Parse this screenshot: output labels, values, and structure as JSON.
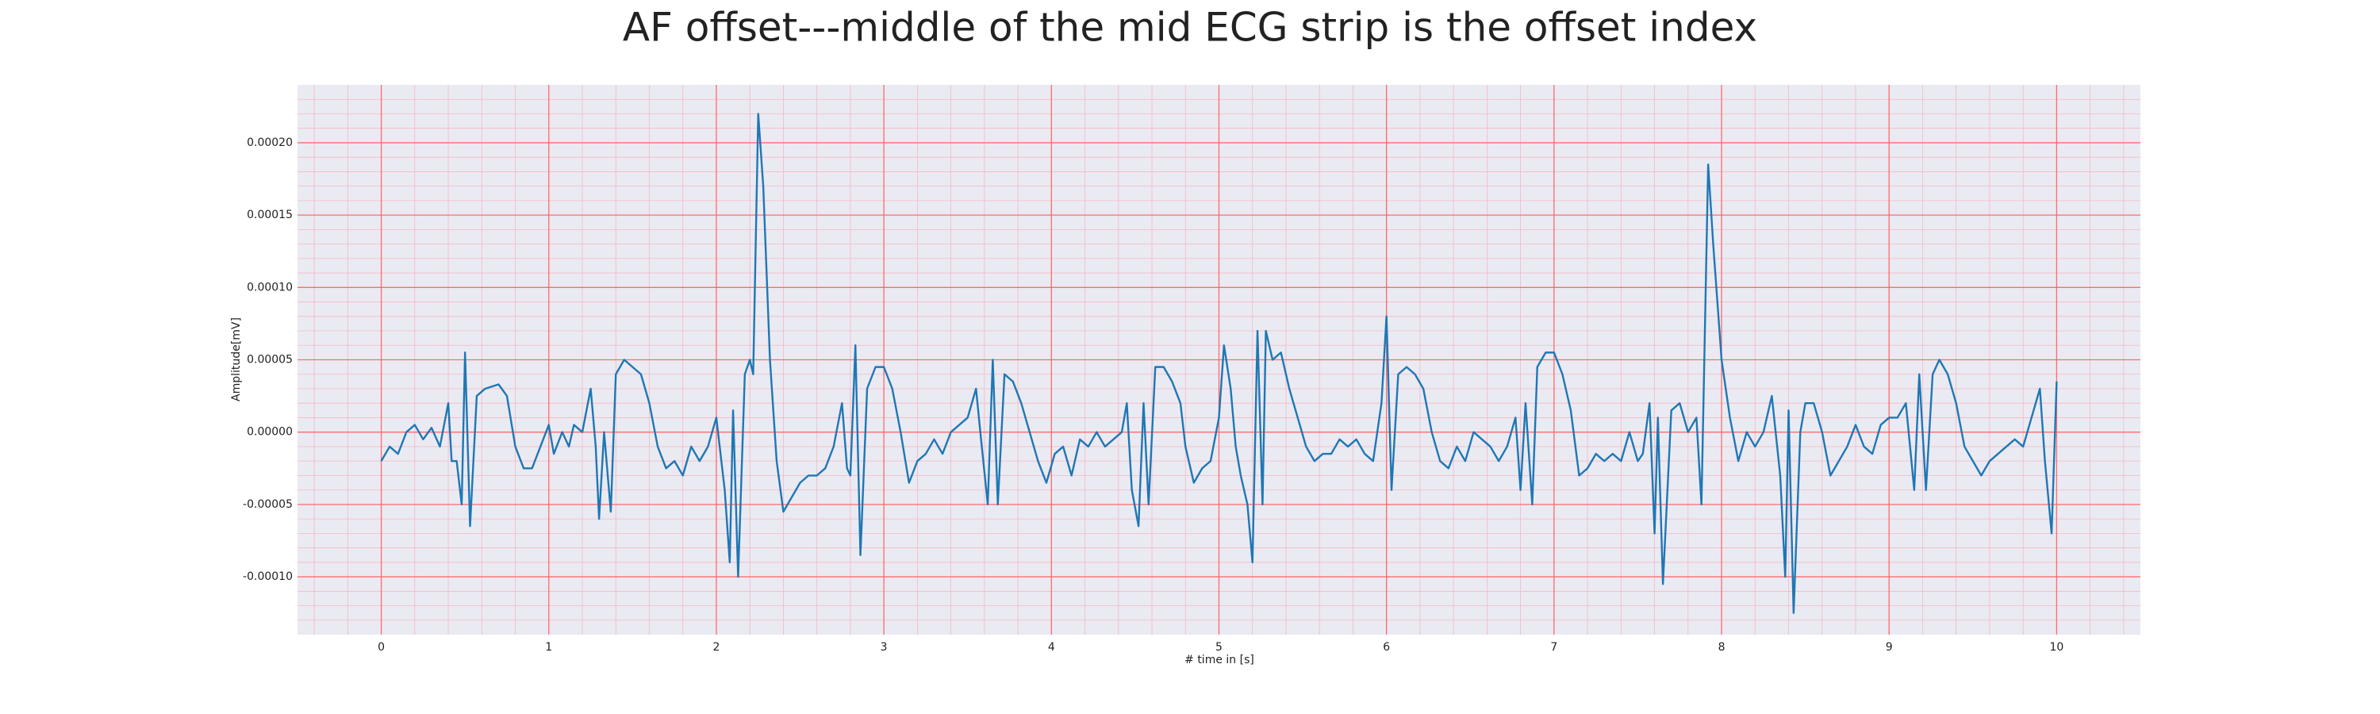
{
  "chart_data": {
    "type": "line",
    "title": "AF offset---middle of the mid ECG strip is the offset index",
    "x_label": "# time in [s]",
    "y_label": "Amplitude[mV]",
    "xlim": [
      -0.5,
      10.5
    ],
    "xticks": [
      0,
      1,
      2,
      3,
      4,
      5,
      6,
      7,
      8,
      9,
      10
    ],
    "ylim": [
      -0.00014,
      0.00024
    ],
    "yticks": [
      {
        "value": -0.0001,
        "label": "-0.00010"
      },
      {
        "value": -5e-05,
        "label": "-0.00005"
      },
      {
        "value": 0,
        "label": "0.00000"
      },
      {
        "value": 5e-05,
        "label": "0.00005"
      },
      {
        "value": 0.0001,
        "label": "0.00010"
      },
      {
        "value": 0.00015,
        "label": "0.00015"
      },
      {
        "value": 0.0002,
        "label": "0.00020"
      }
    ],
    "grid": true,
    "grid_color": "#ff6b6b",
    "minor_grid_color": "#f5b8c4",
    "background": "#eaeaf2",
    "series": [
      {
        "color": "#1f77b4",
        "x": [
          0,
          0.05,
          0.1,
          0.15,
          0.2,
          0.25,
          0.3,
          0.35,
          0.4,
          0.42,
          0.45,
          0.48,
          0.5,
          0.53,
          0.57,
          0.62,
          0.7,
          0.75,
          0.8,
          0.85,
          0.9,
          0.95,
          1.0,
          1.03,
          1.08,
          1.12,
          1.15,
          1.2,
          1.25,
          1.28,
          1.3,
          1.33,
          1.37,
          1.4,
          1.45,
          1.5,
          1.55,
          1.6,
          1.65,
          1.7,
          1.75,
          1.8,
          1.85,
          1.9,
          1.95,
          2.0,
          2.05,
          2.08,
          2.1,
          2.13,
          2.17,
          2.2,
          2.22,
          2.25,
          2.28,
          2.32,
          2.36,
          2.4,
          2.45,
          2.5,
          2.55,
          2.6,
          2.65,
          2.7,
          2.75,
          2.78,
          2.8,
          2.83,
          2.86,
          2.9,
          2.95,
          3.0,
          3.05,
          3.1,
          3.15,
          3.2,
          3.25,
          3.3,
          3.35,
          3.4,
          3.45,
          3.5,
          3.55,
          3.58,
          3.62,
          3.65,
          3.68,
          3.72,
          3.77,
          3.82,
          3.87,
          3.92,
          3.97,
          4.02,
          4.07,
          4.12,
          4.17,
          4.22,
          4.27,
          4.32,
          4.37,
          4.42,
          4.45,
          4.48,
          4.52,
          4.55,
          4.58,
          4.62,
          4.67,
          4.72,
          4.77,
          4.8,
          4.85,
          4.9,
          4.95,
          5.0,
          5.03,
          5.07,
          5.1,
          5.13,
          5.17,
          5.2,
          5.23,
          5.26,
          5.28,
          5.32,
          5.37,
          5.42,
          5.47,
          5.52,
          5.57,
          5.62,
          5.67,
          5.72,
          5.77,
          5.82,
          5.87,
          5.92,
          5.97,
          6.0,
          6.03,
          6.07,
          6.12,
          6.17,
          6.22,
          6.27,
          6.32,
          6.37,
          6.42,
          6.47,
          6.52,
          6.57,
          6.62,
          6.67,
          6.72,
          6.77,
          6.8,
          6.83,
          6.87,
          6.9,
          6.95,
          7.0,
          7.05,
          7.1,
          7.15,
          7.2,
          7.25,
          7.3,
          7.35,
          7.4,
          7.45,
          7.5,
          7.53,
          7.57,
          7.6,
          7.62,
          7.65,
          7.7,
          7.75,
          7.8,
          7.85,
          7.88,
          7.92,
          7.95,
          8.0,
          8.05,
          8.1,
          8.15,
          8.2,
          8.25,
          8.3,
          8.35,
          8.38,
          8.4,
          8.43,
          8.47,
          8.5,
          8.55,
          8.6,
          8.65,
          8.7,
          8.75,
          8.8,
          8.85,
          8.9,
          8.95,
          9.0,
          9.05,
          9.1,
          9.15,
          9.18,
          9.22,
          9.26,
          9.3,
          9.35,
          9.4,
          9.45,
          9.5,
          9.55,
          9.6,
          9.65,
          9.7,
          9.75,
          9.8,
          9.85,
          9.9,
          9.93,
          9.97,
          10.0
        ],
        "values": [
          -2e-05,
          -1e-05,
          -1.5e-05,
          0,
          5e-06,
          -5e-06,
          3e-06,
          -1e-05,
          2e-05,
          -2e-05,
          -2e-05,
          -5e-05,
          5.5e-05,
          -6.5e-05,
          2.5e-05,
          3e-05,
          3.3e-05,
          2.5e-05,
          -1e-05,
          -2.5e-05,
          -2.5e-05,
          -1e-05,
          5e-06,
          -1.5e-05,
          0,
          -1e-05,
          5e-06,
          0,
          3e-05,
          -1e-05,
          -6e-05,
          0,
          -5.5e-05,
          4e-05,
          5e-05,
          4.5e-05,
          4e-05,
          2e-05,
          -1e-05,
          -2.5e-05,
          -2e-05,
          -3e-05,
          -1e-05,
          -2e-05,
          -1e-05,
          1e-05,
          -4e-05,
          -9e-05,
          1.5e-05,
          -0.0001,
          4e-05,
          5e-05,
          4e-05,
          0.00022,
          0.00017,
          5e-05,
          -2e-05,
          -5.5e-05,
          -4.5e-05,
          -3.5e-05,
          -3e-05,
          -3e-05,
          -2.5e-05,
          -1e-05,
          2e-05,
          -2.5e-05,
          -3e-05,
          6e-05,
          -8.5e-05,
          3e-05,
          4.5e-05,
          4.5e-05,
          3e-05,
          0,
          -3.5e-05,
          -2e-05,
          -1.5e-05,
          -5e-06,
          -1.5e-05,
          0,
          5e-06,
          1e-05,
          3e-05,
          -5e-06,
          -5e-05,
          5e-05,
          -5e-05,
          4e-05,
          3.5e-05,
          2e-05,
          0,
          -2e-05,
          -3.5e-05,
          -1.5e-05,
          -1e-05,
          -3e-05,
          -5e-06,
          -1e-05,
          0,
          -1e-05,
          -5e-06,
          0,
          2e-05,
          -4e-05,
          -6.5e-05,
          2e-05,
          -5e-05,
          4.5e-05,
          4.5e-05,
          3.5e-05,
          2e-05,
          -1e-05,
          -3.5e-05,
          -2.5e-05,
          -2e-05,
          1e-05,
          6e-05,
          3e-05,
          -1e-05,
          -3e-05,
          -5e-05,
          -9e-05,
          7e-05,
          -5e-05,
          7e-05,
          5e-05,
          5.5e-05,
          3e-05,
          1e-05,
          -1e-05,
          -2e-05,
          -1.5e-05,
          -1.5e-05,
          -5e-06,
          -1e-05,
          -5e-06,
          -1.5e-05,
          -2e-05,
          2e-05,
          8e-05,
          -4e-05,
          4e-05,
          4.5e-05,
          4e-05,
          3e-05,
          0,
          -2e-05,
          -2.5e-05,
          -1e-05,
          -2e-05,
          0,
          -5e-06,
          -1e-05,
          -2e-05,
          -1e-05,
          1e-05,
          -4e-05,
          2e-05,
          -5e-05,
          4.5e-05,
          5.5e-05,
          5.5e-05,
          4e-05,
          1.5e-05,
          -3e-05,
          -2.5e-05,
          -1.5e-05,
          -2e-05,
          -1.5e-05,
          -2e-05,
          0,
          -2e-05,
          -1.5e-05,
          2e-05,
          -7e-05,
          1e-05,
          -0.000105,
          1.5e-05,
          2e-05,
          0,
          1e-05,
          -5e-05,
          0.000185,
          0.00013,
          5e-05,
          1e-05,
          -2e-05,
          0,
          -1e-05,
          0,
          2.5e-05,
          -3e-05,
          -0.0001,
          1.5e-05,
          -0.000125,
          0,
          2e-05,
          2e-05,
          0,
          -3e-05,
          -2e-05,
          -1e-05,
          5e-06,
          -1e-05,
          -1.5e-05,
          5e-06,
          1e-05,
          1e-05,
          2e-05,
          -4e-05,
          4e-05,
          -4e-05,
          4e-05,
          5e-05,
          4e-05,
          2e-05,
          -1e-05,
          -2e-05,
          -3e-05,
          -2e-05,
          -1.5e-05,
          -1e-05,
          -5e-06,
          -1e-05,
          1e-05,
          3e-05,
          -2e-05,
          -7e-05,
          3.5e-05
        ]
      }
    ]
  }
}
